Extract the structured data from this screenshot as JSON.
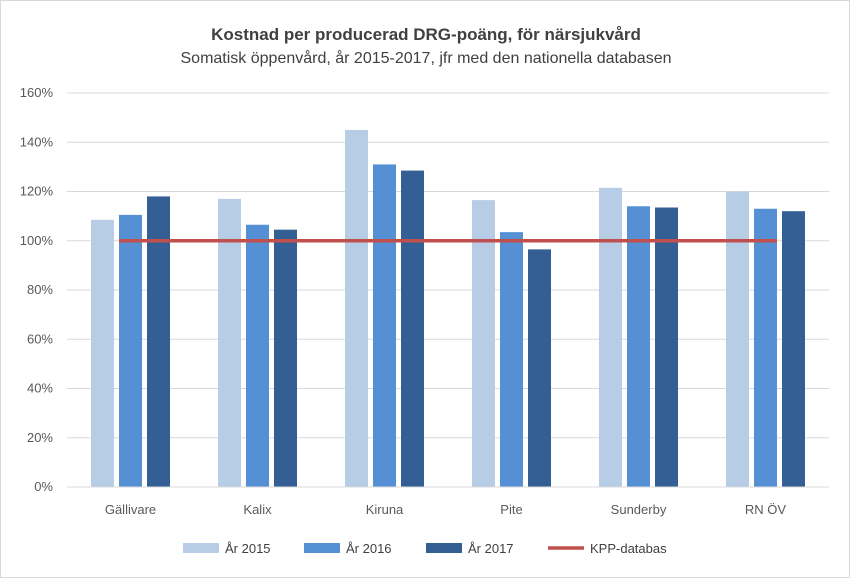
{
  "chart_data": {
    "type": "bar",
    "title": "Kostnad per producerad DRG-poäng, för närsjukvård",
    "subtitle": "Somatisk öppenvård, år 2015-2017, jfr med den nationella databasen",
    "xlabel": "",
    "ylabel": "",
    "categories": [
      "Gällivare",
      "Kalix",
      "Kiruna",
      "Pite",
      "Sunderby",
      "RN ÖV"
    ],
    "series": [
      {
        "name": "År 2015",
        "color": "#b7cde6",
        "values": [
          108.5,
          117,
          145,
          116.5,
          121.5,
          120
        ]
      },
      {
        "name": "År 2016",
        "color": "#5590d5",
        "values": [
          110.5,
          106.5,
          131,
          103.5,
          114,
          113
        ]
      },
      {
        "name": "År 2017",
        "color": "#335f94",
        "values": [
          118,
          104.5,
          128.5,
          96.5,
          113.5,
          112
        ]
      }
    ],
    "reference_line": {
      "name": "KPP-databas",
      "value": 100,
      "color": "#c0504d"
    },
    "ylim": [
      0,
      160
    ],
    "yticks": [
      0,
      20,
      40,
      60,
      80,
      100,
      120,
      140,
      160
    ],
    "ytick_labels": [
      "0%",
      "20%",
      "40%",
      "60%",
      "80%",
      "100%",
      "120%",
      "140%",
      "160%"
    ],
    "grid": true,
    "legend_position": "bottom"
  }
}
